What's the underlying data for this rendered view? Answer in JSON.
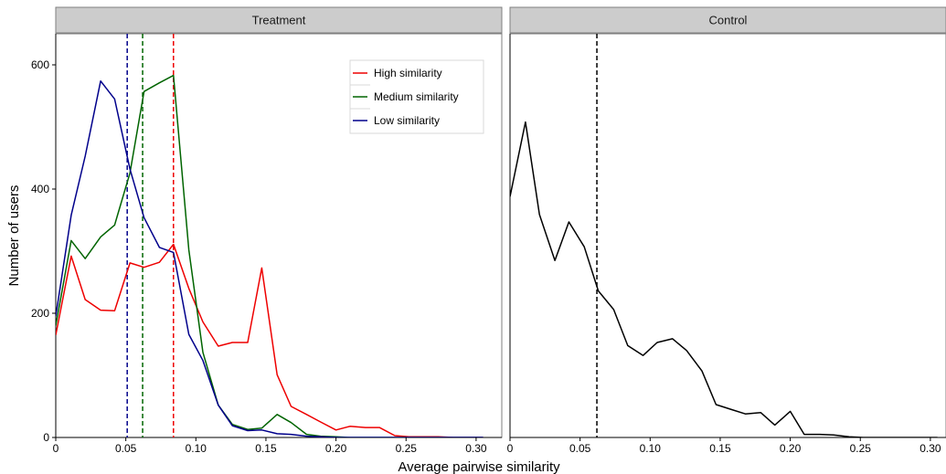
{
  "chart_data": {
    "type": "line",
    "xlabel": "Average pairwise similarity",
    "ylabel": "Number of users",
    "xlim": [
      0,
      0.32
    ],
    "ylim": [
      0,
      650
    ],
    "x_ticks": [
      0,
      0.05,
      0.1,
      0.15,
      0.2,
      0.25,
      0.3
    ],
    "x_tick_labels": [
      "0",
      "0.05",
      "0.10",
      "0.15",
      "0.20",
      "0.25",
      "0.30"
    ],
    "y_ticks": [
      0,
      200,
      400,
      600
    ],
    "y_tick_labels": [
      "0",
      "200",
      "400",
      "600"
    ],
    "grid": false,
    "legend_placement": "top-right of Treatment panel",
    "panels": [
      {
        "title": "Treatment",
        "series": [
          {
            "name": "High similarity",
            "color": "#ee0000",
            "mean": 0.084,
            "x": [
              0,
              0.011,
              0.021,
              0.032,
              0.042,
              0.053,
              0.063,
              0.074,
              0.084,
              0.095,
              0.105,
              0.116,
              0.126,
              0.137,
              0.147,
              0.158,
              0.168,
              0.179,
              0.189,
              0.2,
              0.21,
              0.221,
              0.231,
              0.242,
              0.252,
              0.263,
              0.273,
              0.284,
              0.294,
              0.305
            ],
            "values": [
              165,
              292,
              222,
              205,
              204,
              281,
              274,
              282,
              311,
              240,
              186,
              147,
              153,
              153,
              273,
              101,
              50,
              37,
              25,
              12,
              18,
              16,
              16,
              3,
              1,
              1,
              1,
              0,
              0,
              0
            ]
          },
          {
            "name": "Medium similarity",
            "color": "#006400",
            "mean": 0.062,
            "x": [
              0,
              0.011,
              0.021,
              0.032,
              0.042,
              0.053,
              0.063,
              0.074,
              0.084,
              0.095,
              0.105,
              0.116,
              0.126,
              0.137,
              0.147,
              0.158,
              0.168,
              0.179,
              0.189,
              0.2,
              0.21,
              0.221,
              0.231,
              0.242,
              0.252,
              0.263,
              0.273,
              0.284,
              0.294,
              0.305
            ],
            "values": [
              180,
              317,
              288,
              323,
              342,
              426,
              557,
              571,
              583,
              302,
              137,
              52,
              21,
              13,
              15,
              37,
              24,
              5,
              2,
              1,
              0,
              0,
              0,
              0,
              0,
              0,
              0,
              0,
              0,
              0
            ]
          },
          {
            "name": "Low similarity",
            "color": "#00008b",
            "mean": 0.051,
            "x": [
              0,
              0.011,
              0.021,
              0.032,
              0.042,
              0.053,
              0.063,
              0.074,
              0.084,
              0.095,
              0.105,
              0.116,
              0.126,
              0.137,
              0.147,
              0.158,
              0.168,
              0.179,
              0.189,
              0.2,
              0.21,
              0.221,
              0.231,
              0.242,
              0.252,
              0.263,
              0.273,
              0.284,
              0.294,
              0.305
            ],
            "values": [
              195,
              358,
              453,
              574,
              545,
              432,
              354,
              306,
              298,
              166,
              124,
              52,
              19,
              11,
              12,
              6,
              5,
              2,
              1,
              0,
              0,
              0,
              0,
              0,
              0,
              0,
              0,
              0,
              0,
              0
            ]
          }
        ]
      },
      {
        "title": "Control",
        "series": [
          {
            "color": "#000000",
            "mean": 0.062,
            "x": [
              0,
              0.011,
              0.021,
              0.032,
              0.042,
              0.053,
              0.063,
              0.074,
              0.084,
              0.095,
              0.105,
              0.116,
              0.126,
              0.137,
              0.147,
              0.158,
              0.168,
              0.179,
              0.189,
              0.2,
              0.21,
              0.221,
              0.231,
              0.242,
              0.252,
              0.263,
              0.273,
              0.284,
              0.294,
              0.305
            ],
            "values": [
              388,
              508,
              359,
              285,
              347,
              307,
              236,
              206,
              148,
              132,
              153,
              159,
              140,
              107,
              53,
              45,
              38,
              40,
              20,
              42,
              5,
              5,
              4,
              1,
              0,
              0,
              0,
              0,
              0,
              0
            ]
          }
        ]
      }
    ]
  }
}
